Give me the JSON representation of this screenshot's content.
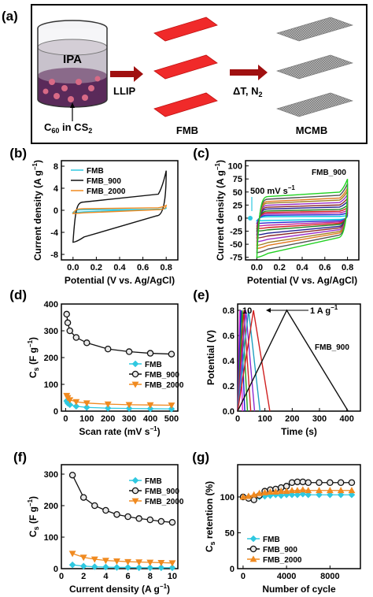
{
  "panel_a": {
    "label": "(a)",
    "beaker_top": "IPA",
    "beaker_bottom_pre": "C",
    "beaker_bottom_sub": "60",
    "beaker_bottom_mid": " in CS",
    "beaker_bottom_sub2": "2",
    "arrow1": "LLIP",
    "arrow2": "ΔT, N",
    "arrow2_sub": "2",
    "label_fmb": "FMB",
    "label_mcmb": "MCMB",
    "colors": {
      "sheet_red": "#f02a2a",
      "sheet_gray": "#9a9a9a",
      "arrow": "#a01010"
    }
  },
  "chart_data": [
    {
      "panel": "(b)",
      "type": "line",
      "xlabel_a": "Potential (V vs. Ag/AgCl)",
      "ylabel": "Current density (A g",
      "ylabel_sup": "−1",
      "ylabel_end": ")",
      "xlim": [
        -0.1,
        0.9
      ],
      "ylim": [
        -9,
        9
      ],
      "xticks": [
        "0.0",
        "0.2",
        "0.4",
        "0.6",
        "0.8"
      ],
      "xtick_values": [
        0.0,
        0.2,
        0.4,
        0.6,
        0.8
      ],
      "yticks": [
        "-8",
        "-4",
        "0",
        "4",
        "8"
      ],
      "ytick_values": [
        -8,
        -4,
        0,
        4,
        8
      ],
      "series": [
        {
          "name": "FMB",
          "color": "#2fc8e0",
          "upper_start": 0.1,
          "upper_end": 0.4,
          "lower_start": -0.4,
          "lower_end": 0.2
        },
        {
          "name": "FMB_900",
          "color": "#111111",
          "upper_start": 1.5,
          "upper_end": 7.2,
          "lower_start": -5.8,
          "lower_end": -1.0
        },
        {
          "name": "FMB_2000",
          "color": "#f08a20",
          "upper_start": 0.3,
          "upper_end": 0.9,
          "lower_start": -0.6,
          "lower_end": 0.1
        }
      ]
    },
    {
      "panel": "(c)",
      "type": "line",
      "xlabel_a": "Potential (V vs. Ag/AgCl)",
      "ylabel": "Current density (A g",
      "ylabel_sup": "−1",
      "ylabel_end": ")",
      "xlim": [
        -0.1,
        0.9
      ],
      "ylim": [
        -80,
        110
      ],
      "xticks": [
        "0.0",
        "0.2",
        "0.4",
        "0.6",
        "0.8"
      ],
      "xtick_values": [
        0.0,
        0.2,
        0.4,
        0.6,
        0.8
      ],
      "yticks": [
        "-75",
        "-50",
        "-25",
        "0",
        "25",
        "50",
        "75",
        "100"
      ],
      "ytick_values": [
        -75,
        -50,
        -25,
        0,
        25,
        50,
        75,
        100
      ],
      "annotation": "FMB_900",
      "rate_label": "500 mV s",
      "rate_sup": "−1",
      "curves": [
        {
          "amp": 5,
          "color": "#00c8e0"
        },
        {
          "amp": 10,
          "color": "#2a2ad0"
        },
        {
          "amp": 15,
          "color": "#c0209a"
        },
        {
          "amp": 20,
          "color": "#d02020"
        },
        {
          "amp": 25,
          "color": "#208020"
        },
        {
          "amp": 32,
          "color": "#202090"
        },
        {
          "amp": 38,
          "color": "#8a2a2a"
        },
        {
          "amp": 45,
          "color": "#9a30c8"
        },
        {
          "amp": 52,
          "color": "#a08020"
        },
        {
          "amp": 58,
          "color": "#e07a20"
        },
        {
          "amp": 66,
          "color": "#555555"
        },
        {
          "amp": 75,
          "color": "#20d020"
        }
      ]
    },
    {
      "panel": "(d)",
      "type": "line",
      "xlabel": "Scan rate (mV s",
      "xlabel_sup": "−1",
      "xlabel_end": ")",
      "ylabel": "C",
      "ylabel_sub": "s",
      "ylabel_rest": " (F g",
      "ylabel_sup": "−1",
      "ylabel_end": ")",
      "xlim": [
        -20,
        530
      ],
      "ylim": [
        0,
        400
      ],
      "xticks": [
        "0",
        "100",
        "200",
        "300",
        "400",
        "500"
      ],
      "xtick_values": [
        0,
        100,
        200,
        300,
        400,
        500
      ],
      "yticks": [
        "0",
        "100",
        "200",
        "300",
        "400"
      ],
      "ytick_values": [
        0,
        100,
        200,
        300,
        400
      ],
      "x": [
        5,
        10,
        20,
        50,
        100,
        200,
        300,
        400,
        500
      ],
      "series": [
        {
          "name": "FMB",
          "color": "#2fc8e0",
          "marker": "diamond",
          "values": [
            38,
            30,
            24,
            18,
            14,
            11,
            10,
            9,
            8
          ]
        },
        {
          "name": "FMB_900",
          "color": "#111111",
          "marker": "circle",
          "values": [
            362,
            330,
            300,
            275,
            255,
            232,
            222,
            216,
            213
          ]
        },
        {
          "name": "FMB_2000",
          "color": "#f08a20",
          "marker": "triangle-down",
          "values": [
            58,
            50,
            42,
            35,
            30,
            26,
            24,
            23,
            22
          ]
        }
      ]
    },
    {
      "panel": "(e)",
      "type": "line",
      "xlabel": "Time (s)",
      "ylabel": "Potential (V)",
      "xlim": [
        0,
        450
      ],
      "ylim": [
        0,
        0.85
      ],
      "xticks": [
        "0",
        "100",
        "200",
        "300",
        "400"
      ],
      "xtick_values": [
        0,
        100,
        200,
        300,
        400
      ],
      "yticks": [
        "0.0",
        "0.2",
        "0.4",
        "0.6",
        "0.8"
      ],
      "ytick_values": [
        0.0,
        0.2,
        0.4,
        0.6,
        0.8
      ],
      "annotation": "FMB_900",
      "label_high": "10",
      "label_low": "1 A g",
      "label_low_sup": "−1",
      "curves": [
        {
          "peak": 8,
          "end": 18,
          "color": "#e020e0"
        },
        {
          "peak": 12,
          "end": 26,
          "color": "#2020d0"
        },
        {
          "peak": 17,
          "end": 36,
          "color": "#20a020"
        },
        {
          "peak": 23,
          "end": 48,
          "color": "#d02020"
        },
        {
          "peak": 30,
          "end": 62,
          "color": "#8a2ad0"
        },
        {
          "peak": 40,
          "end": 82,
          "color": "#20a0c0"
        },
        {
          "peak": 58,
          "end": 118,
          "color": "#d02020"
        },
        {
          "peak": 180,
          "end": 405,
          "color": "#111111"
        }
      ]
    },
    {
      "panel": "(f)",
      "type": "line",
      "xlabel": "Current density (A g",
      "xlabel_sup": "−1",
      "xlabel_end": ")",
      "ylabel": "C",
      "ylabel_sub": "s",
      "ylabel_rest": " (F g",
      "ylabel_sup": "−1",
      "ylabel_end": ")",
      "xlim": [
        0,
        10.5
      ],
      "ylim": [
        0,
        330
      ],
      "xticks": [
        "0",
        "2",
        "4",
        "6",
        "8",
        "10"
      ],
      "xtick_values": [
        0,
        2,
        4,
        6,
        8,
        10
      ],
      "yticks": [
        "0",
        "100",
        "200",
        "300"
      ],
      "ytick_values": [
        0,
        100,
        200,
        300
      ],
      "x": [
        1,
        2,
        3,
        4,
        5,
        6,
        7,
        8,
        9,
        10
      ],
      "series": [
        {
          "name": "FMB",
          "color": "#2fc8e0",
          "marker": "diamond",
          "values": [
            12,
            8,
            6,
            5,
            4,
            4,
            3,
            3,
            3,
            3
          ]
        },
        {
          "name": "FMB_900",
          "color": "#111111",
          "marker": "circle",
          "values": [
            297,
            226,
            200,
            185,
            172,
            165,
            159,
            155,
            150,
            147
          ]
        },
        {
          "name": "FMB_2000",
          "color": "#f08a20",
          "marker": "triangle-down",
          "values": [
            48,
            36,
            30,
            26,
            24,
            22,
            21,
            20,
            19,
            18
          ]
        }
      ]
    },
    {
      "panel": "(g)",
      "type": "line",
      "xlabel": "Number of cycle",
      "ylabel": "C",
      "ylabel_sub": "s",
      "ylabel_rest": " retention (%)",
      "xlim": [
        -500,
        10800
      ],
      "ylim": [
        0,
        145
      ],
      "xticks": [
        "0",
        "4000",
        "8000"
      ],
      "xtick_values": [
        0,
        4000,
        8000
      ],
      "yticks": [
        "0",
        "50",
        "100"
      ],
      "ytick_values": [
        0,
        50,
        100
      ],
      "x": [
        0,
        500,
        1000,
        1500,
        2000,
        2500,
        3000,
        3500,
        4000,
        4500,
        5000,
        5500,
        6000,
        7000,
        8000,
        9000,
        10000
      ],
      "series": [
        {
          "name": "FMB",
          "color": "#2fc8e0",
          "marker": "diamond",
          "values": [
            100,
            99,
            98,
            100,
            101,
            102,
            103,
            102,
            103,
            103,
            103,
            104,
            103,
            103,
            103,
            103,
            103
          ]
        },
        {
          "name": "FMB_900",
          "color": "#111111",
          "marker": "circle",
          "values": [
            100,
            98,
            96,
            102,
            108,
            110,
            111,
            113,
            115,
            120,
            121,
            121,
            120,
            120,
            120,
            120,
            120
          ]
        },
        {
          "name": "FMB_2000",
          "color": "#f08a20",
          "marker": "triangle-up",
          "values": [
            100,
            101,
            103,
            105,
            106,
            107,
            107,
            108,
            108,
            109,
            109,
            110,
            109,
            109,
            109,
            109,
            109
          ]
        }
      ]
    }
  ]
}
